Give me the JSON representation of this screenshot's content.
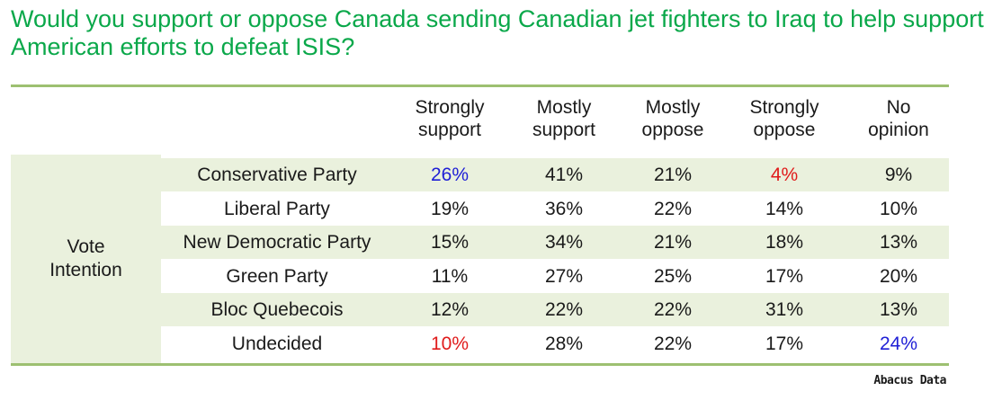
{
  "title": "Would you support or oppose Canada sending Canadian jet fighters to Iraq to help support American efforts to defeat ISIS?",
  "colors": {
    "title": "#0aa84a",
    "shade": "#eaf1dd",
    "rule": "#9dc071",
    "highlight_high": "#1f1fd6",
    "highlight_low": "#e01b1b"
  },
  "chart_data": {
    "type": "table",
    "row_group": "Vote Intention",
    "columns": [
      "Strongly support",
      "Mostly support",
      "Mostly oppose",
      "Strongly oppose",
      "No opinion"
    ],
    "rows": [
      {
        "label": "Conservative Party",
        "values": [
          "26%",
          "41%",
          "21%",
          "4%",
          "9%"
        ],
        "highlight": [
          "high",
          "",
          "",
          "low",
          ""
        ]
      },
      {
        "label": "Liberal Party",
        "values": [
          "19%",
          "36%",
          "22%",
          "14%",
          "10%"
        ],
        "highlight": [
          "",
          "",
          "",
          "",
          ""
        ]
      },
      {
        "label": "New Democratic Party",
        "values": [
          "15%",
          "34%",
          "21%",
          "18%",
          "13%"
        ],
        "highlight": [
          "",
          "",
          "",
          "",
          ""
        ]
      },
      {
        "label": "Green Party",
        "values": [
          "11%",
          "27%",
          "25%",
          "17%",
          "20%"
        ],
        "highlight": [
          "",
          "",
          "",
          "",
          ""
        ]
      },
      {
        "label": "Bloc Quebecois",
        "values": [
          "12%",
          "22%",
          "22%",
          "31%",
          "13%"
        ],
        "highlight": [
          "",
          "",
          "",
          "",
          ""
        ]
      },
      {
        "label": "Undecided",
        "values": [
          "10%",
          "28%",
          "22%",
          "17%",
          "24%"
        ],
        "highlight": [
          "low",
          "",
          "",
          "",
          "high"
        ]
      }
    ]
  },
  "source": "Abacus Data"
}
